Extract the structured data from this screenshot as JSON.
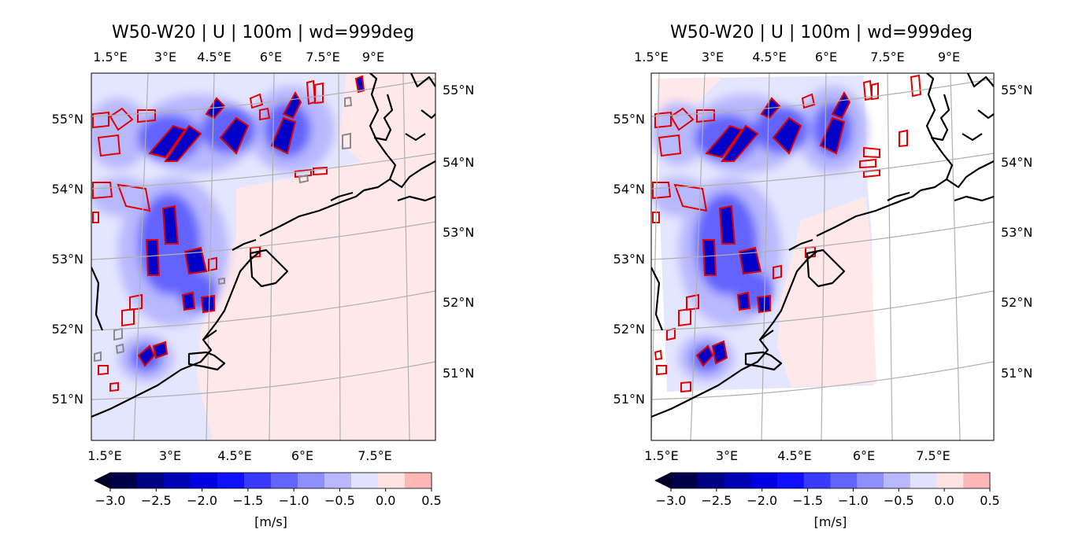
{
  "colorbar": {
    "ticks": [
      "−3.0",
      "−2.5",
      "−2.0",
      "−1.5",
      "−1.0",
      "−0.5",
      "0.0",
      "0.5"
    ],
    "label": "[m/s]",
    "colors": [
      "#00004a",
      "#000082",
      "#0000b4",
      "#0000e0",
      "#1010ff",
      "#3a3aff",
      "#6464ff",
      "#8e8eff",
      "#b8b8ff",
      "#e2e2ff",
      "#ffe2e2",
      "#ffb8b8"
    ]
  },
  "panels": [
    {
      "title": "W50-W20 | U | 100m | wd=999deg",
      "top_lon_labels": [
        "1.5°E",
        "3°E",
        "4.5°E",
        "6°E",
        "7.5°E",
        "9°E"
      ],
      "bottom_lon_labels": [
        "1.5°E",
        "3°E",
        "4.5°E",
        "6°E",
        "7.5°E"
      ],
      "left_lat_labels": [
        "55°N",
        "54°N",
        "53°N",
        "52°N",
        "51°N"
      ],
      "right_lat_labels": [
        "55°N",
        "54°N",
        "53°N",
        "52°N",
        "51°N"
      ]
    },
    {
      "title": "W50-W20 | U | 100m | wd=999deg",
      "top_lon_labels": [
        "1.5°E",
        "3°E",
        "4.5°E",
        "6°E",
        "7.5°E",
        "9°E"
      ],
      "bottom_lon_labels": [
        "1.5°E",
        "3°E",
        "4.5°E",
        "6°E",
        "7.5°E"
      ],
      "left_lat_labels": [
        "55°N",
        "54°N",
        "53°N",
        "52°N",
        "51°N"
      ],
      "right_lat_labels": [
        "55°N",
        "54°N",
        "53°N",
        "52°N",
        "51°N"
      ]
    }
  ]
}
